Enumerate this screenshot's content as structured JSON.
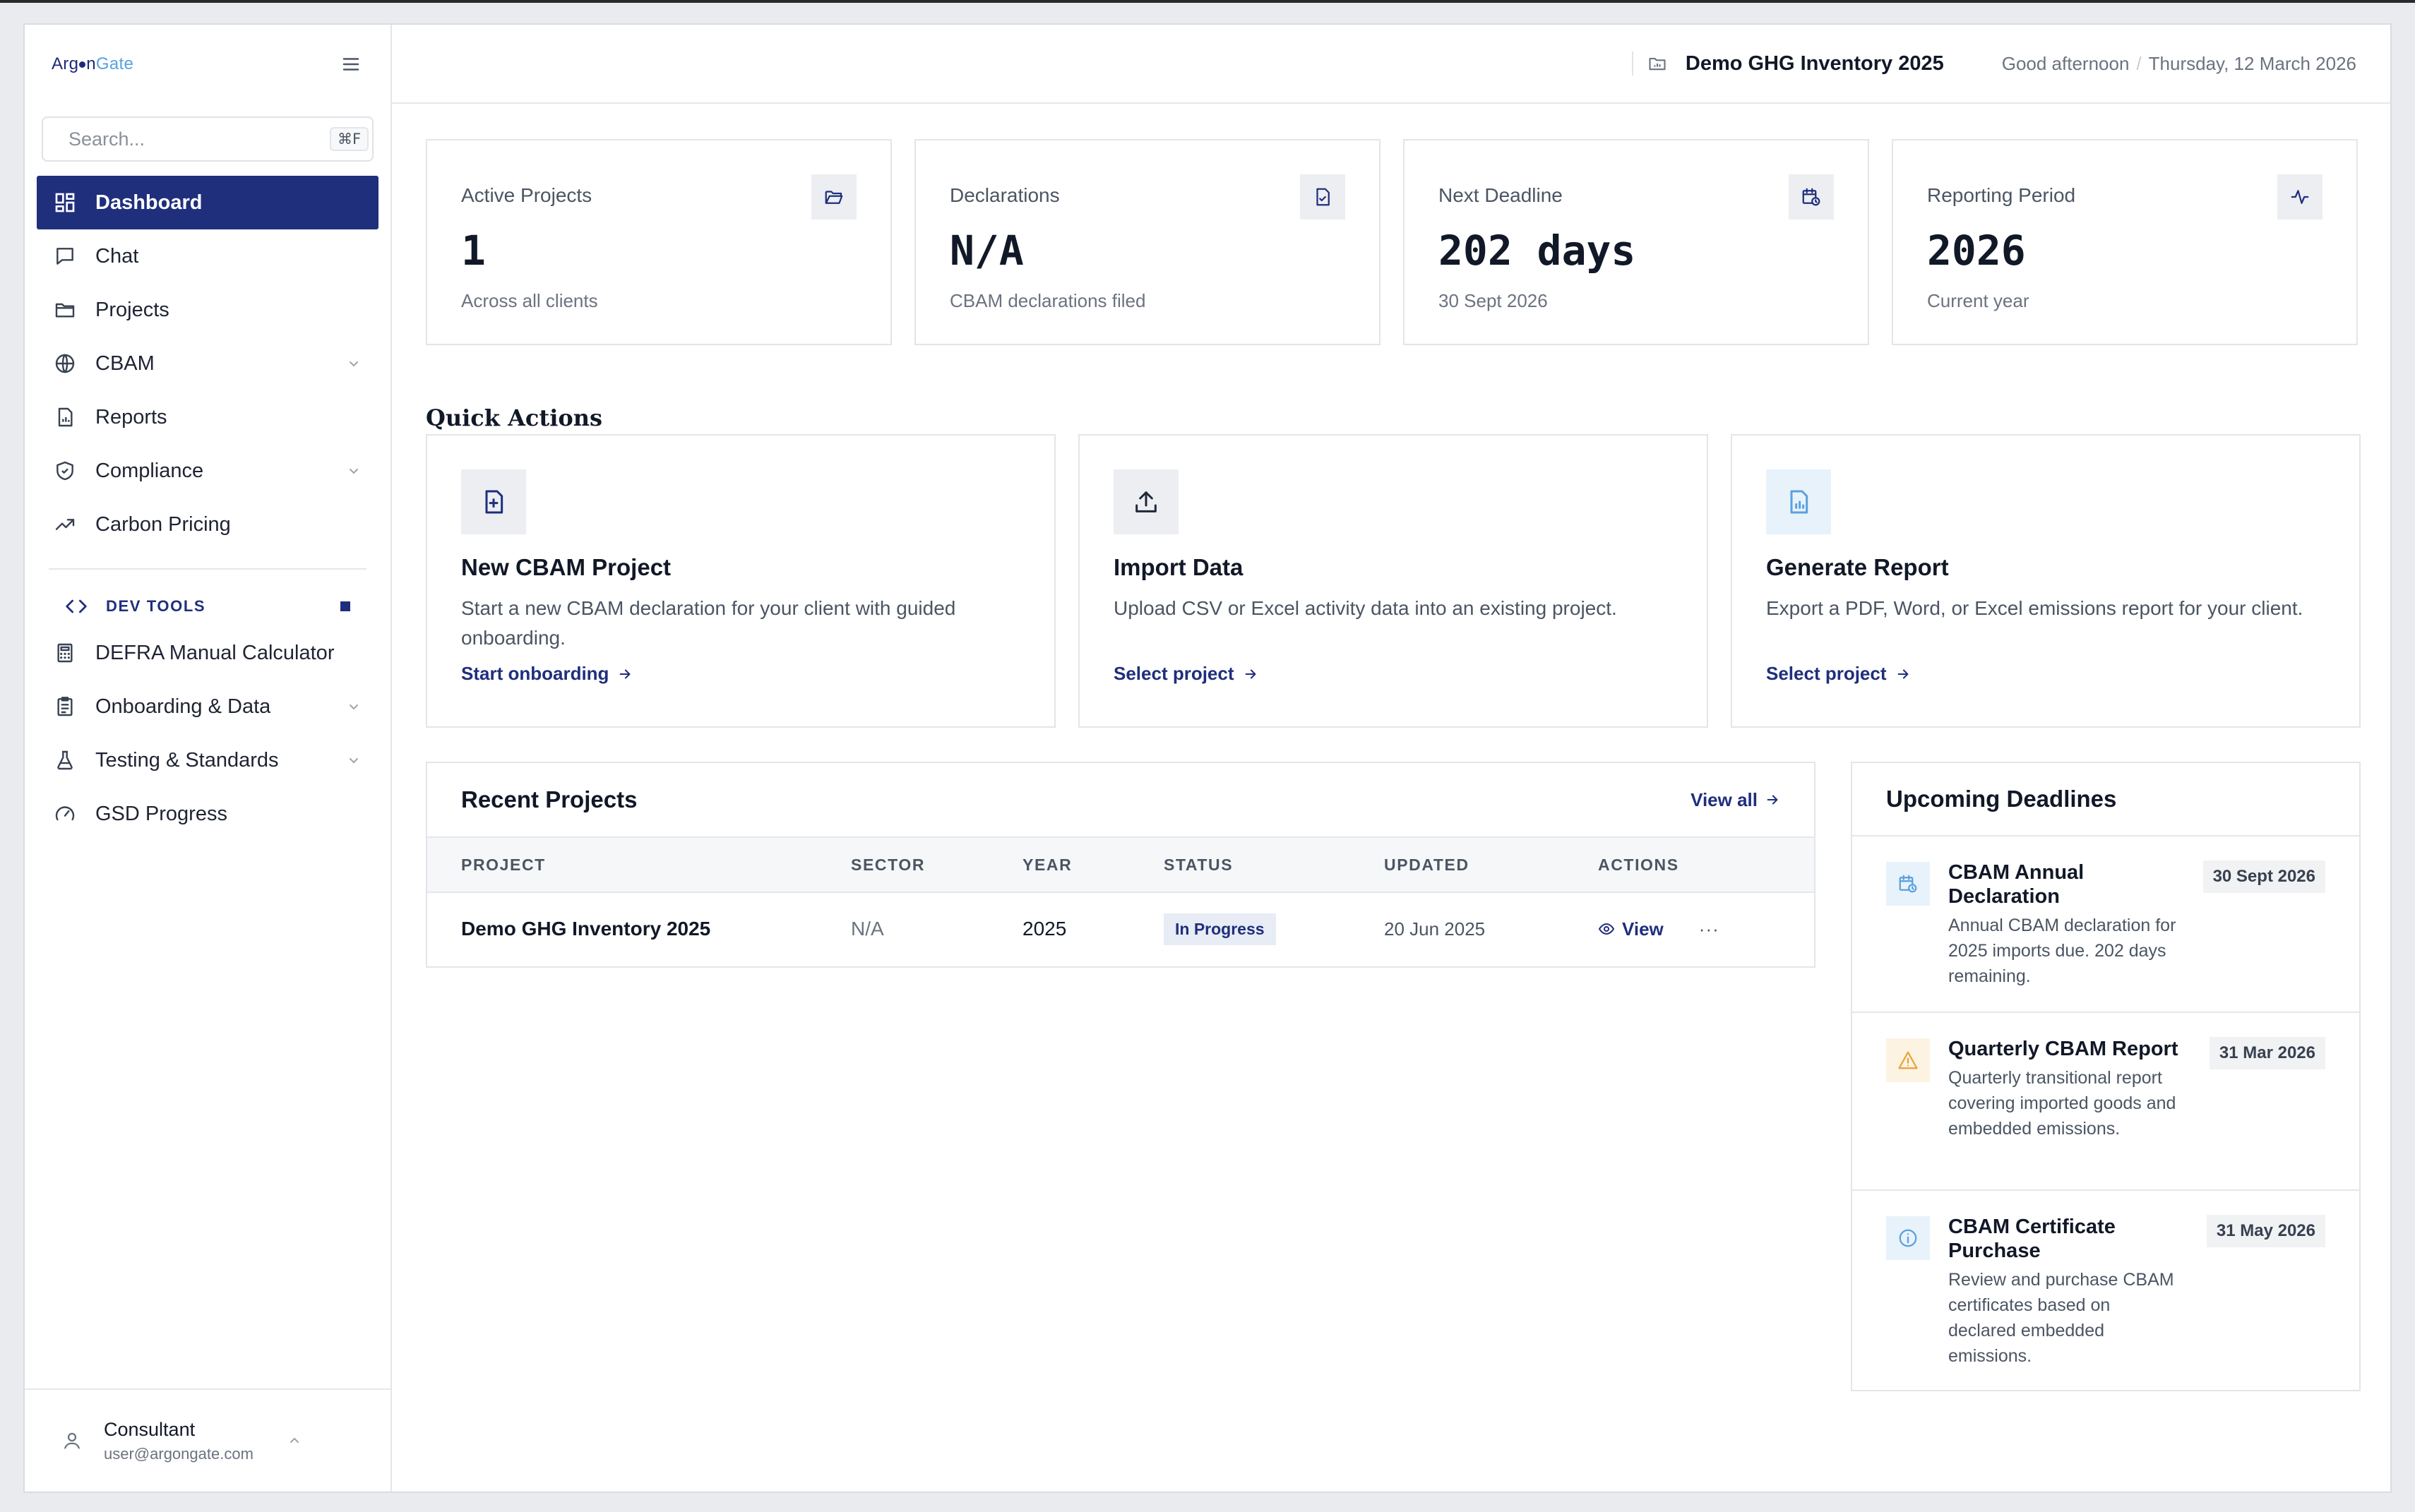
{
  "brand": {
    "name_part1": "Arg",
    "name_part2": "n",
    "name_part3": "Gate"
  },
  "search": {
    "placeholder": "Search...",
    "shortcut": "⌘F"
  },
  "sidebar": {
    "items": [
      {
        "label": "Dashboard",
        "icon": "dashboard-grid-icon",
        "active": true
      },
      {
        "label": "Chat",
        "icon": "chat-bubble-icon"
      },
      {
        "label": "Projects",
        "icon": "folder-icon"
      },
      {
        "label": "CBAM",
        "icon": "globe-icon",
        "expandable": true
      },
      {
        "label": "Reports",
        "icon": "report-file-icon"
      },
      {
        "label": "Compliance",
        "icon": "shield-check-icon",
        "expandable": true
      },
      {
        "label": "Carbon Pricing",
        "icon": "trending-up-icon"
      }
    ],
    "dev_tools_label": "DEV TOOLS",
    "dev_items": [
      {
        "label": "DEFRA Manual Calculator",
        "icon": "calculator-icon"
      },
      {
        "label": "Onboarding & Data",
        "icon": "clipboard-icon",
        "expandable": true
      },
      {
        "label": "Testing & Standards",
        "icon": "flask-icon",
        "expandable": true
      },
      {
        "label": "GSD Progress",
        "icon": "gauge-icon"
      }
    ]
  },
  "user": {
    "name": "Consultant",
    "email": "user@argongate.com"
  },
  "topbar": {
    "project": "Demo GHG Inventory 2025",
    "greeting": "Good afternoon",
    "separator": "/",
    "date": "Thursday, 12 March 2026"
  },
  "stats": [
    {
      "label": "Active Projects",
      "value": "1",
      "sub": "Across all clients",
      "icon": "folder-open-icon"
    },
    {
      "label": "Declarations",
      "value": "N/A",
      "sub": "CBAM declarations filed",
      "icon": "file-check-icon"
    },
    {
      "label": "Next Deadline",
      "value": "202 days",
      "sub": "30 Sept 2026",
      "icon": "calendar-clock-icon"
    },
    {
      "label": "Reporting Period",
      "value": "2026",
      "sub": "Current year",
      "icon": "activity-icon"
    }
  ],
  "quick_actions": {
    "title": "Quick Actions",
    "cards": [
      {
        "title": "New CBAM Project",
        "desc": "Start a new CBAM declaration for your client with guided onboarding.",
        "link": "Start onboarding",
        "icon": "file-plus-icon"
      },
      {
        "title": "Import Data",
        "desc": "Upload CSV or Excel activity data into an existing project.",
        "link": "Select project",
        "icon": "upload-icon"
      },
      {
        "title": "Generate Report",
        "desc": "Export a PDF, Word, or Excel emissions report for your client.",
        "link": "Select project",
        "icon": "report-chart-icon"
      }
    ]
  },
  "recent": {
    "title": "Recent Projects",
    "view_all": "View all",
    "columns": [
      "PROJECT",
      "SECTOR",
      "YEAR",
      "STATUS",
      "UPDATED",
      "ACTIONS"
    ],
    "rows": [
      {
        "project": "Demo GHG Inventory 2025",
        "sector": "N/A",
        "year": "2025",
        "status": "In Progress",
        "updated": "20 Jun 2025",
        "action": "View",
        "more": "···"
      }
    ]
  },
  "deadlines": {
    "title": "Upcoming Deadlines",
    "items": [
      {
        "title": "CBAM Annual Declaration",
        "desc": "Annual CBAM declaration for 2025 imports due. 202 days remaining.",
        "date": "30 Sept 2026",
        "icon": "calendar-clock-icon",
        "tone": "#5aa0e0"
      },
      {
        "title": "Quarterly CBAM Report",
        "desc": "Quarterly transitional report covering imported goods and embedded emissions.",
        "date": "31 Mar 2026",
        "icon": "warning-triangle-icon",
        "tone": "#e8a33a"
      },
      {
        "title": "CBAM Certificate Purchase",
        "desc": "Review and purchase CBAM certificates based on declared embedded emissions.",
        "date": "31 May 2026",
        "icon": "info-circle-icon",
        "tone": "#5aa0e0"
      }
    ]
  },
  "colors": {
    "accent": "#1f2f7c",
    "info": "#5aa0e0",
    "warning": "#e8a33a"
  }
}
